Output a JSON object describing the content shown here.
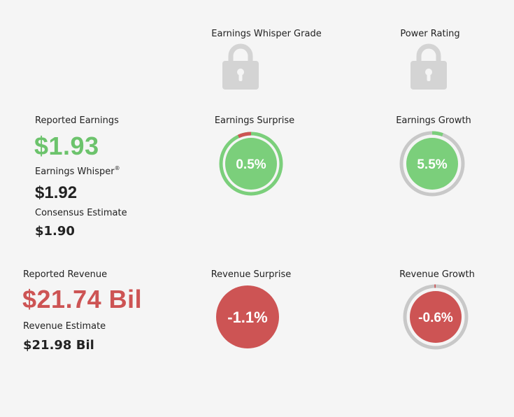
{
  "headers": {
    "whisper_grade": "Earnings Whisper Grade",
    "power_rating": "Power Rating"
  },
  "earnings": {
    "reported_label": "Reported Earnings",
    "reported_value": "$1.93",
    "whisper_label": "Earnings Whisper",
    "whisper_mark": "®",
    "whisper_value": "$1.92",
    "consensus_label": "Consensus Estimate",
    "consensus_value": "$1.90"
  },
  "revenue": {
    "reported_label": "Reported Revenue",
    "reported_value": "$21.74 Bil",
    "estimate_label": "Revenue Estimate",
    "estimate_value": "$21.98 Bil"
  },
  "gauges": {
    "earnings_surprise": {
      "label": "Earnings Surprise",
      "value_text": "0.5%",
      "percent": 0.5,
      "fill_color": "#7bcf7b",
      "ring_color": "#7bcf7b",
      "marker_color": "#cd5454"
    },
    "earnings_growth": {
      "label": "Earnings Growth",
      "value_text": "5.5%",
      "percent": 5.5,
      "fill_color": "#7bcf7b",
      "ring_color": "#c8c8c8",
      "marker_color": "#7bcf7b"
    },
    "revenue_surprise": {
      "label": "Revenue Surprise",
      "value_text": "-1.1%",
      "percent": -1.1,
      "fill_color": "#cd5454"
    },
    "revenue_growth": {
      "label": "Revenue Growth",
      "value_text": "-0.6%",
      "percent": -0.6,
      "fill_color": "#cd5454",
      "ring_color": "#c8c8c8",
      "marker_color": "#cd5454"
    }
  },
  "colors": {
    "green": "#6cc36c",
    "red": "#cd5454",
    "lock_gray": "#d4d4d4"
  },
  "icons": {
    "whisper_grade": "lock-icon",
    "power_rating": "lock-icon"
  }
}
